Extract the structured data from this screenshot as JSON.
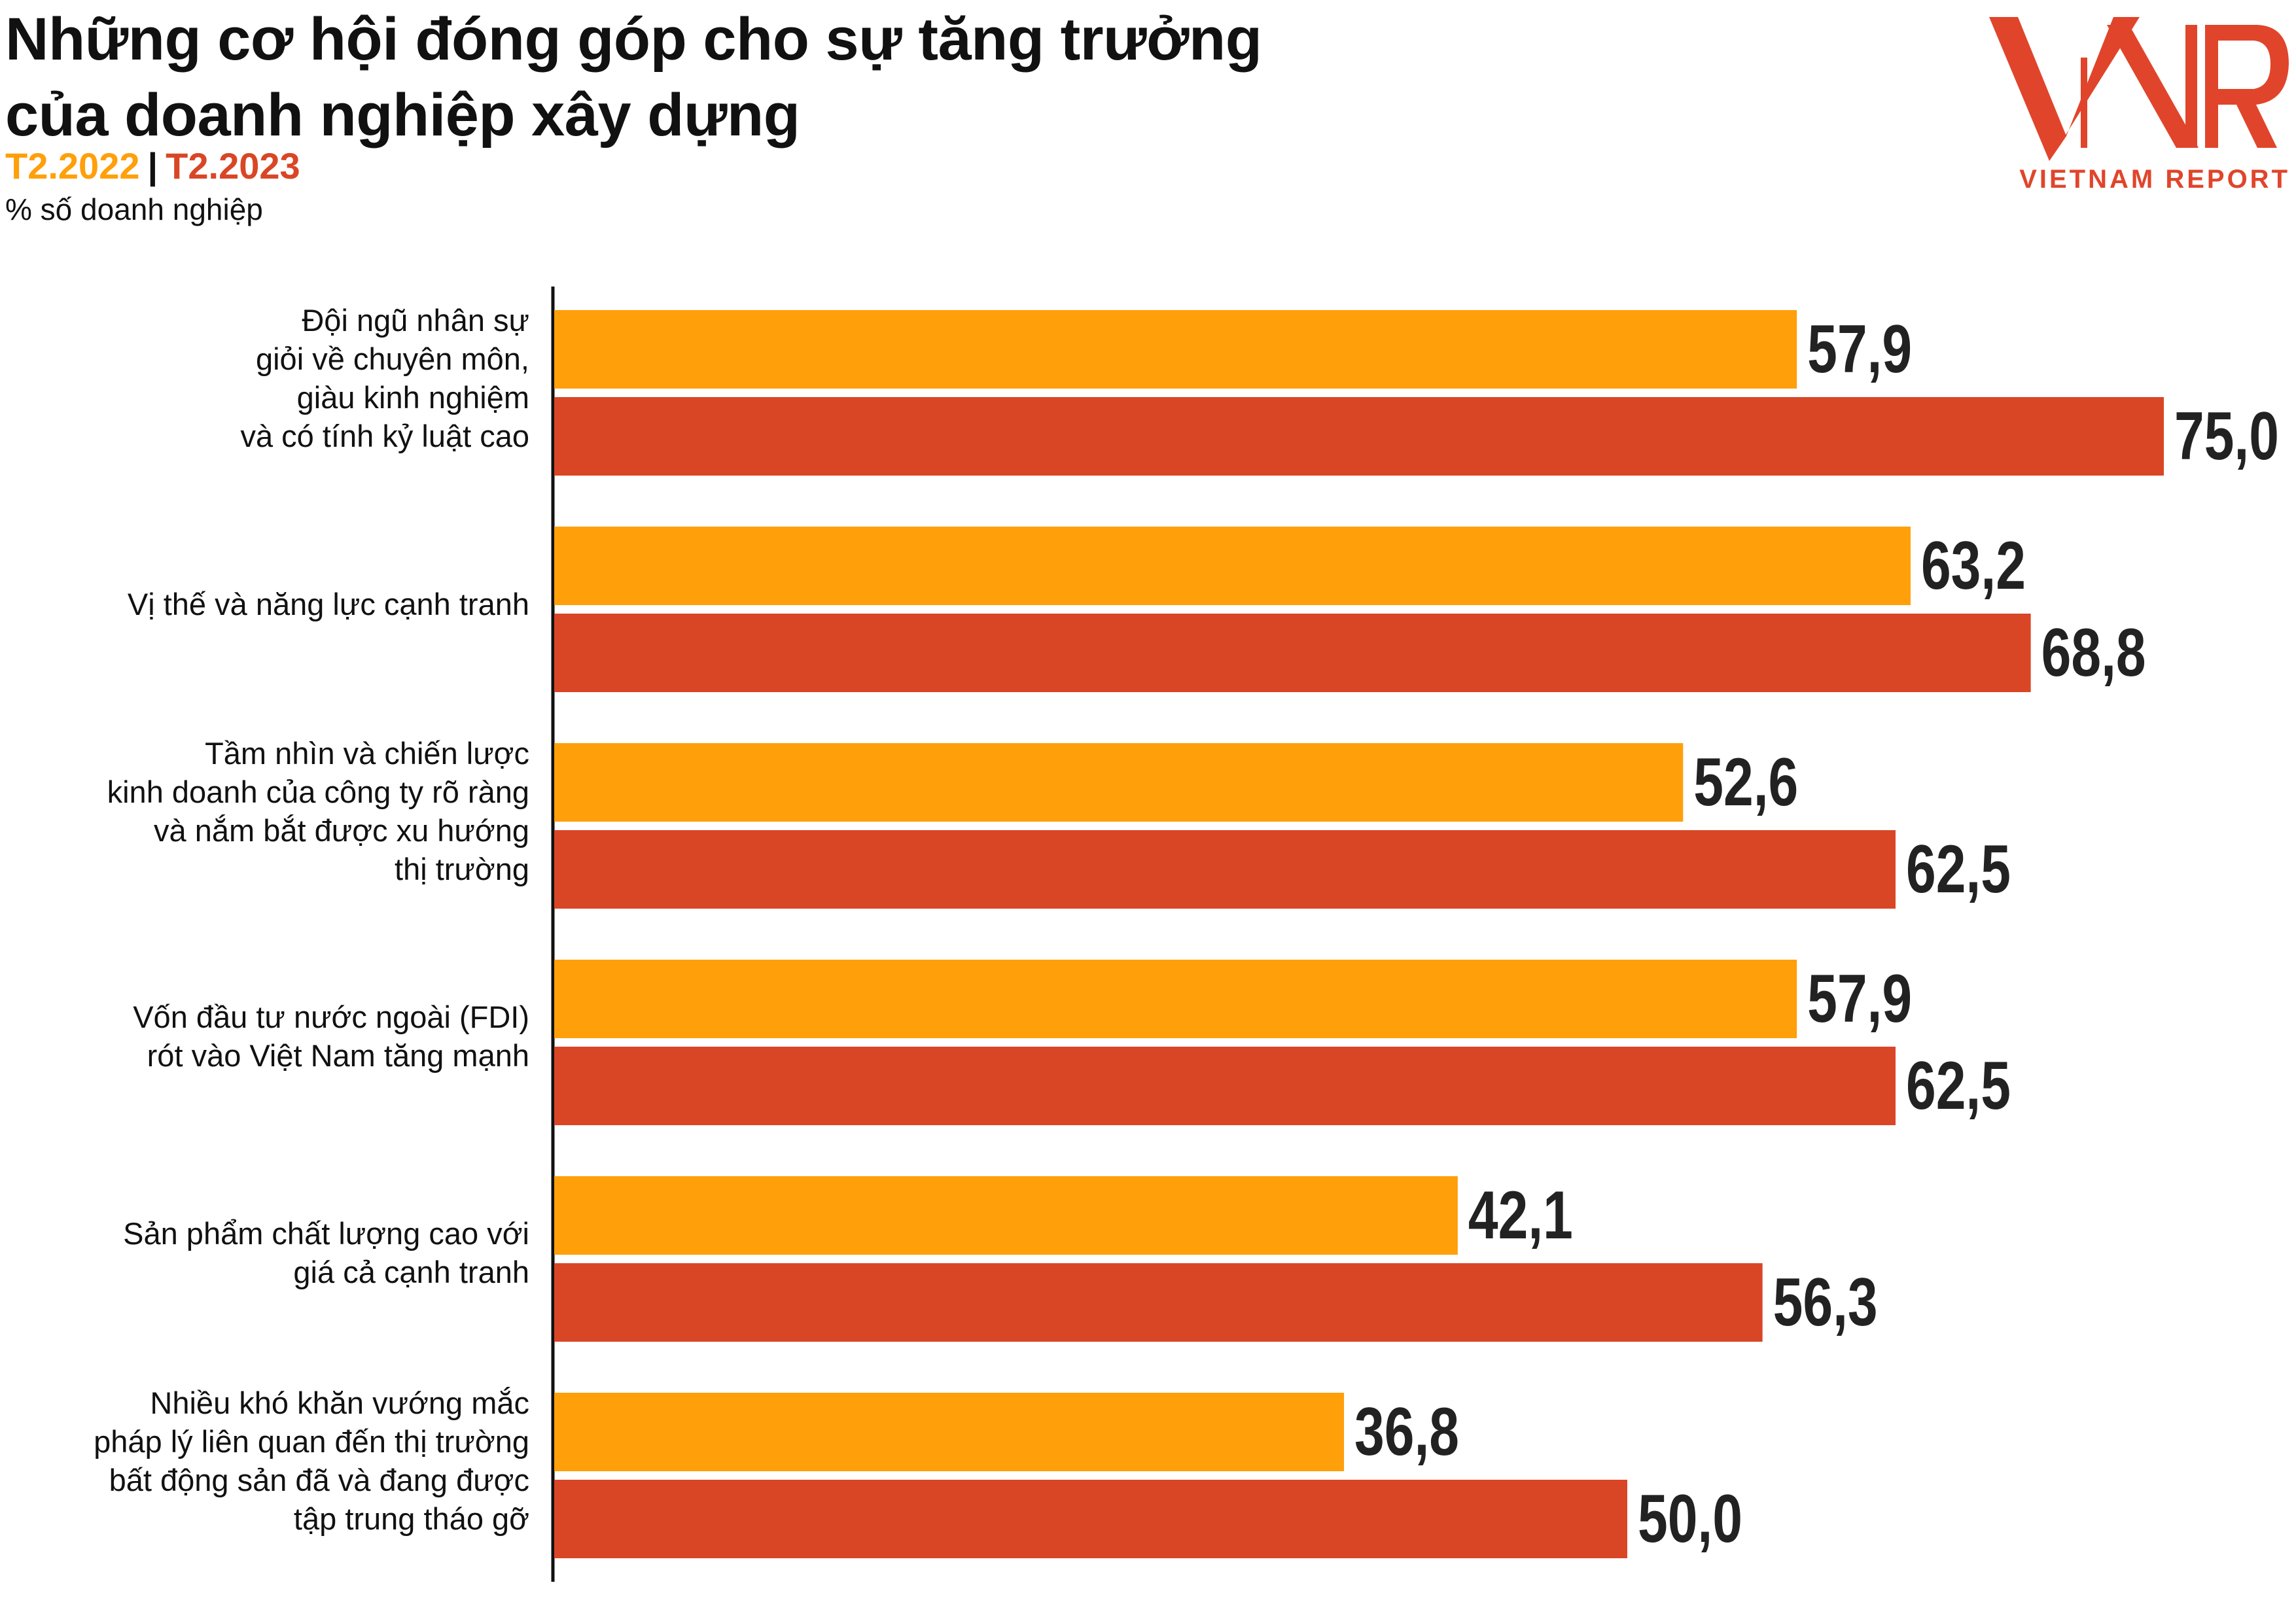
{
  "header": {
    "title_line1": "Những cơ hội đóng góp cho sự tăng trưởng",
    "title_line2": "của doanh nghiệp xây dựng",
    "unit": "% số doanh nghiệp",
    "separator": "|"
  },
  "logo": {
    "mark": "VNR",
    "text": "VIETNAM REPORT"
  },
  "colors": {
    "series_2022": "#ff9f0a",
    "series_2023": "#d94626",
    "axis": "#111111",
    "text": "#111111"
  },
  "chart_data": {
    "type": "bar",
    "orientation": "horizontal",
    "categories": [
      [
        "Đội ngũ nhân sự",
        "giỏi về chuyên môn,",
        "giàu kinh nghiệm",
        "và có tính kỷ luật cao"
      ],
      [
        "Vị thế và năng lực cạnh tranh"
      ],
      [
        "Tầm nhìn và chiến lược",
        "kinh doanh của công ty rõ ràng",
        "và nắm bắt được xu hướng",
        "thị trường"
      ],
      [
        "Vốn đầu tư nước ngoài (FDI)",
        "rót vào Việt Nam tăng mạnh"
      ],
      [
        "Sản phẩm chất lượng cao với",
        "giá cả cạnh tranh"
      ],
      [
        "Nhiều khó khăn vướng mắc",
        "pháp lý liên quan đến thị trường",
        "bất động sản đã và đang được",
        "tập trung tháo gỡ"
      ]
    ],
    "series": [
      {
        "name": "T2.2022",
        "values": [
          57.9,
          63.2,
          52.6,
          57.9,
          42.1,
          36.8
        ],
        "labels": [
          "57,9",
          "63,2",
          "52,6",
          "57,9",
          "42,1",
          "36,8"
        ]
      },
      {
        "name": "T2.2023",
        "values": [
          75.0,
          68.8,
          62.5,
          62.5,
          56.3,
          50.0
        ],
        "labels": [
          "75,0",
          "68,8",
          "62,5",
          "62,5",
          "56,3",
          "50,0"
        ]
      }
    ],
    "xlim": [
      0,
      75
    ],
    "grid": false,
    "legend": "top-left"
  }
}
